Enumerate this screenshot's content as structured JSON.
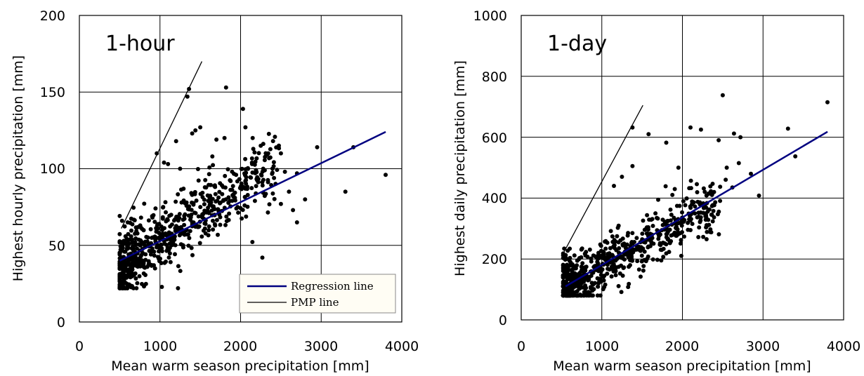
{
  "chart_data": [
    {
      "type": "scatter",
      "panel_label": "1-hour",
      "xlabel": "Mean warm season precipitation [mm]",
      "ylabel": "Highest hourly precipitation [mm]",
      "xlim": [
        0,
        4000
      ],
      "ylim": [
        0,
        200
      ],
      "xticks": [
        "0",
        "1000",
        "2000",
        "3000",
        "4000"
      ],
      "yticks": [
        "0",
        "50",
        "100",
        "150",
        "200"
      ],
      "grid": true,
      "legend_placement": "bottom-right",
      "legend": [
        {
          "name": "Regression line",
          "color": "#000080"
        },
        {
          "name": "PMP line",
          "color": "#000000"
        }
      ],
      "regression_line": {
        "x": [
          500,
          3800
        ],
        "y": [
          40,
          124
        ]
      },
      "pmp_line": {
        "x": [
          520,
          1520
        ],
        "y": [
          61,
          170
        ]
      },
      "outliers": [
        {
          "x": 1360,
          "y": 152
        },
        {
          "x": 1340,
          "y": 147
        },
        {
          "x": 1820,
          "y": 153
        },
        {
          "x": 2030,
          "y": 139
        },
        {
          "x": 2060,
          "y": 127
        },
        {
          "x": 1500,
          "y": 127
        },
        {
          "x": 1400,
          "y": 123
        },
        {
          "x": 1440,
          "y": 125
        },
        {
          "x": 1800,
          "y": 120
        },
        {
          "x": 1700,
          "y": 119
        },
        {
          "x": 2150,
          "y": 120
        },
        {
          "x": 960,
          "y": 110
        },
        {
          "x": 1200,
          "y": 118
        },
        {
          "x": 2950,
          "y": 114
        },
        {
          "x": 3400,
          "y": 114
        },
        {
          "x": 3800,
          "y": 96
        },
        {
          "x": 3300,
          "y": 85
        },
        {
          "x": 2270,
          "y": 42
        },
        {
          "x": 2700,
          "y": 65
        },
        {
          "x": 2500,
          "y": 110
        },
        {
          "x": 2300,
          "y": 99
        },
        {
          "x": 2550,
          "y": 98
        },
        {
          "x": 2700,
          "y": 97
        },
        {
          "x": 2800,
          "y": 80
        },
        {
          "x": 2600,
          "y": 85
        },
        {
          "x": 2650,
          "y": 73
        },
        {
          "x": 2500,
          "y": 77
        },
        {
          "x": 530,
          "y": 66
        },
        {
          "x": 600,
          "y": 65
        },
        {
          "x": 1050,
          "y": 104
        },
        {
          "x": 1100,
          "y": 103
        },
        {
          "x": 1250,
          "y": 100
        },
        {
          "x": 1650,
          "y": 108
        }
      ],
      "cloud": {
        "count": 680,
        "x_range": [
          500,
          2450
        ],
        "intercept": 19,
        "slope": 0.034,
        "spread": 11,
        "y_clip": [
          22,
          125
        ]
      }
    },
    {
      "type": "scatter",
      "panel_label": "1-day",
      "xlabel": "Mean warm season precipitation [mm]",
      "ylabel": "Highest daily precipitation [mm]",
      "xlim": [
        0,
        4000
      ],
      "ylim": [
        0,
        1000
      ],
      "xticks": [
        "0",
        "1000",
        "2000",
        "3000",
        "4000"
      ],
      "yticks": [
        "0",
        "200",
        "400",
        "600",
        "800",
        "1000"
      ],
      "grid": true,
      "legend_placement": "none",
      "legend": [],
      "regression_line": {
        "x": [
          550,
          3800
        ],
        "y": [
          110,
          618
        ]
      },
      "pmp_line": {
        "x": [
          520,
          1510
        ],
        "y": [
          218,
          705
        ]
      },
      "outliers": [
        {
          "x": 2500,
          "y": 738
        },
        {
          "x": 3800,
          "y": 715
        },
        {
          "x": 1380,
          "y": 632
        },
        {
          "x": 2100,
          "y": 632
        },
        {
          "x": 2230,
          "y": 625
        },
        {
          "x": 3310,
          "y": 628
        },
        {
          "x": 2640,
          "y": 612
        },
        {
          "x": 1580,
          "y": 610
        },
        {
          "x": 2720,
          "y": 600
        },
        {
          "x": 1800,
          "y": 582
        },
        {
          "x": 2450,
          "y": 590
        },
        {
          "x": 3400,
          "y": 537
        },
        {
          "x": 2700,
          "y": 515
        },
        {
          "x": 2850,
          "y": 480
        },
        {
          "x": 2950,
          "y": 408
        },
        {
          "x": 520,
          "y": 218
        },
        {
          "x": 2300,
          "y": 265
        },
        {
          "x": 2100,
          "y": 295
        },
        {
          "x": 2620,
          "y": 435
        },
        {
          "x": 2550,
          "y": 500
        },
        {
          "x": 1950,
          "y": 500
        },
        {
          "x": 1150,
          "y": 440
        },
        {
          "x": 1380,
          "y": 505
        },
        {
          "x": 1250,
          "y": 470
        }
      ],
      "cloud": {
        "count": 700,
        "x_range": [
          520,
          2450
        ],
        "intercept": 30,
        "slope": 0.145,
        "spread": 45,
        "y_clip": [
          80,
          550
        ]
      }
    }
  ]
}
